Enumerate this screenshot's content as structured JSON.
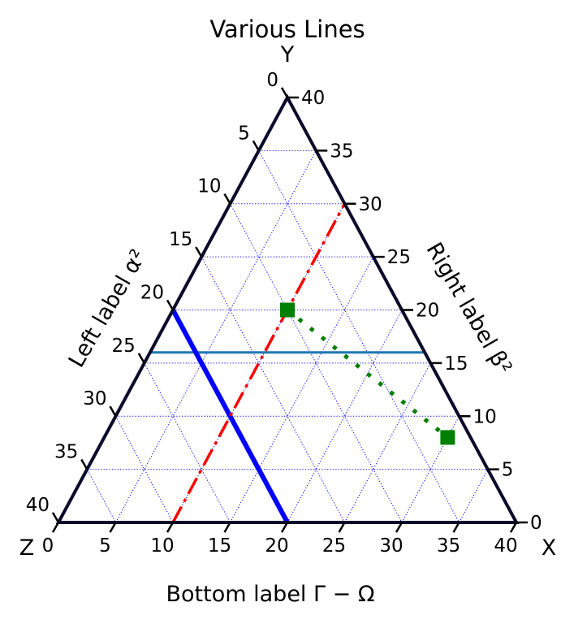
{
  "chart_data": {
    "type": "ternary",
    "title": "Various Lines",
    "scale": 40,
    "corner_labels": {
      "top": "Y",
      "right": "X",
      "left": "Z"
    },
    "axis_labels": {
      "left": "Left label α²",
      "right": "Right label β²",
      "bottom": "Bottom label Γ − Ω"
    },
    "ticks": {
      "bottom": [
        "0",
        "5",
        "10",
        "15",
        "20",
        "25",
        "30",
        "35",
        "40"
      ],
      "left": [
        "0",
        "5",
        "10",
        "15",
        "20",
        "25",
        "30",
        "35",
        "40"
      ],
      "right": [
        "0",
        "5",
        "10",
        "15",
        "20",
        "25",
        "30",
        "35",
        "40"
      ]
    },
    "grid": {
      "on": true,
      "multiple": 5,
      "color": "#0000ff",
      "style": "dotted"
    },
    "series": [
      {
        "style": "solid",
        "color": "#1f77b4",
        "width": 3,
        "points": [
          [
            0,
            16,
            24
          ],
          [
            24,
            16,
            0
          ]
        ]
      },
      {
        "style": "solid",
        "color": "#0000ff",
        "width": 6,
        "points": [
          [
            20,
            0,
            20
          ],
          [
            0,
            20,
            20
          ]
        ]
      },
      {
        "style": "dashdot",
        "color": "#ff0000",
        "width": 3.5,
        "points": [
          [
            10,
            0,
            30
          ],
          [
            10,
            30,
            0
          ]
        ]
      },
      {
        "style": "dotted",
        "color": "#008000",
        "width": 5,
        "marker": "square",
        "points": [
          [
            10,
            20,
            10
          ],
          [
            30,
            8,
            2
          ]
        ]
      }
    ]
  }
}
